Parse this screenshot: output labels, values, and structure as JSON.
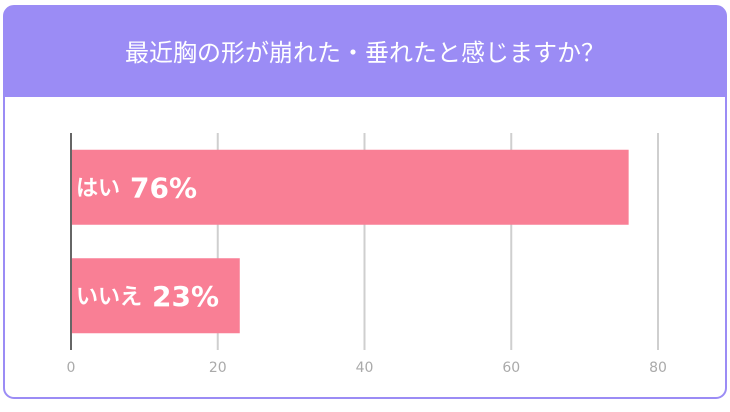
{
  "chart_data": {
    "type": "bar",
    "orientation": "horizontal",
    "title": "最近胸の形が崩れた・垂れたと感じますか？",
    "categories": [
      "はい",
      "いいえ"
    ],
    "values": [
      76,
      23
    ],
    "value_labels": [
      "76%",
      "23%"
    ],
    "color": "#f97f95",
    "xlim": [
      0,
      80
    ],
    "xticks": [
      0,
      20,
      40,
      60,
      80
    ],
    "grid": true
  }
}
